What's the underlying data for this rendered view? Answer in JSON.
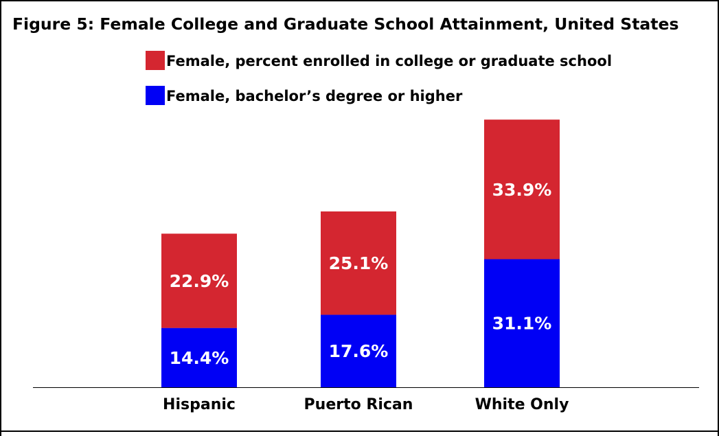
{
  "chart_data": {
    "type": "bar",
    "stacked": true,
    "title": "Figure 5: Female College and Graduate School Attainment, United States",
    "categories": [
      "Hispanic",
      "Puerto Rican",
      "White Only"
    ],
    "series": [
      {
        "name": "Female, bachelor’s degree or higher",
        "color": "#0000f5",
        "values": [
          14.4,
          17.6,
          31.1
        ],
        "labels": [
          "14.4%",
          "17.6%",
          "31.1%"
        ]
      },
      {
        "name": "Female, percent enrolled in college or graduate school",
        "color": "#d42630",
        "values": [
          22.9,
          25.1,
          33.9
        ],
        "labels": [
          "22.9%",
          "25.1%",
          "33.9%"
        ]
      }
    ],
    "legend_order": [
      1,
      0
    ],
    "legend_position": "top",
    "ylim": [
      0,
      70
    ],
    "grid": false,
    "xlabel": "",
    "ylabel": ""
  }
}
